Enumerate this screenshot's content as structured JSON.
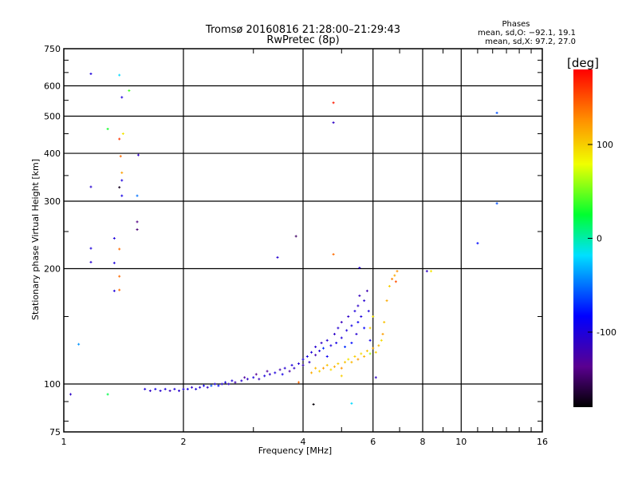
{
  "chart_data": {
    "type": "scatter",
    "title": [
      "Tromsø 20160816 21:28:00–21:29:43",
      "RwPretec (8p)"
    ],
    "stats": {
      "heading": "Phases",
      "line_o": "mean, sd,O: −92.1, 19.1",
      "line_x": "mean, sd,X:  97.2, 27.0"
    },
    "xlabel": "Frequency [MHz]",
    "ylabel": "Stationary phase Virtual Height [km]",
    "xscale": "log",
    "yscale": "log",
    "xlim": [
      1,
      16
    ],
    "ylim": [
      75,
      750
    ],
    "xticks": [
      1,
      2,
      4,
      6,
      8,
      10,
      16
    ],
    "xtick_labels": [
      "1",
      "2",
      "4",
      "6",
      "8",
      "10",
      "16"
    ],
    "yticks": [
      75,
      100,
      200,
      300,
      400,
      500,
      600,
      750
    ],
    "ytick_labels": [
      "75",
      "100",
      "200",
      "300",
      "400",
      "500",
      "600",
      "750"
    ],
    "grid": true,
    "colorbar": {
      "label": "[deg]",
      "range": [
        -180,
        180
      ],
      "ticks": [
        100,
        0,
        -100
      ],
      "tick_labels": [
        "100",
        "0",
        "-100"
      ]
    },
    "point_format": [
      "frequency_MHz",
      "height_km",
      "phase_deg"
    ],
    "points": [
      [
        1.6,
        97,
        -100
      ],
      [
        1.65,
        96,
        -110
      ],
      [
        1.7,
        97,
        -95
      ],
      [
        1.75,
        96,
        -105
      ],
      [
        1.8,
        97,
        -100
      ],
      [
        1.85,
        96,
        -115
      ],
      [
        1.9,
        97,
        -100
      ],
      [
        1.95,
        96,
        -108
      ],
      [
        2.0,
        97,
        -102
      ],
      [
        2.05,
        97,
        -95
      ],
      [
        2.1,
        98,
        -110
      ],
      [
        2.15,
        97,
        -100
      ],
      [
        2.2,
        98,
        -105
      ],
      [
        2.25,
        99,
        -95
      ],
      [
        2.3,
        98,
        -110
      ],
      [
        2.35,
        99,
        -60
      ],
      [
        2.4,
        100,
        -100
      ],
      [
        2.45,
        99,
        -80
      ],
      [
        2.5,
        100,
        -105
      ],
      [
        2.55,
        101,
        -95
      ],
      [
        2.6,
        100,
        -110
      ],
      [
        2.65,
        102,
        -100
      ],
      [
        2.7,
        101,
        -120
      ],
      [
        2.8,
        102,
        -105
      ],
      [
        2.85,
        104,
        -130
      ],
      [
        2.9,
        103,
        -110
      ],
      [
        3.0,
        104,
        -100
      ],
      [
        3.05,
        106,
        -135
      ],
      [
        3.1,
        103,
        -115
      ],
      [
        3.2,
        105,
        -100
      ],
      [
        3.25,
        108,
        -130
      ],
      [
        3.3,
        106,
        -110
      ],
      [
        3.4,
        107,
        -100
      ],
      [
        3.5,
        109,
        -120
      ],
      [
        3.55,
        106,
        -95
      ],
      [
        3.6,
        110,
        -105
      ],
      [
        3.7,
        108,
        -125
      ],
      [
        3.75,
        112,
        -100
      ],
      [
        3.8,
        110,
        -110
      ],
      [
        3.9,
        113,
        -105
      ],
      [
        4.0,
        112,
        -115
      ],
      [
        4.0,
        116,
        -100
      ],
      [
        4.1,
        118,
        -95
      ],
      [
        4.15,
        114,
        -110
      ],
      [
        4.2,
        121,
        -100
      ],
      [
        4.3,
        119,
        -120
      ],
      [
        4.3,
        125,
        -105
      ],
      [
        4.4,
        122,
        -100
      ],
      [
        4.45,
        128,
        -110
      ],
      [
        4.5,
        124,
        -70
      ],
      [
        4.6,
        130,
        -105
      ],
      [
        4.6,
        118,
        -90
      ],
      [
        4.7,
        126,
        -100
      ],
      [
        4.8,
        135,
        -110
      ],
      [
        4.85,
        128,
        -95
      ],
      [
        4.9,
        140,
        -105
      ],
      [
        5.0,
        132,
        -100
      ],
      [
        5.0,
        145,
        -115
      ],
      [
        5.1,
        125,
        -70
      ],
      [
        5.15,
        138,
        -100
      ],
      [
        5.2,
        150,
        -110
      ],
      [
        5.3,
        142,
        -95
      ],
      [
        5.3,
        128,
        -80
      ],
      [
        5.4,
        155,
        -100
      ],
      [
        5.45,
        135,
        -105
      ],
      [
        5.5,
        160,
        -110
      ],
      [
        5.5,
        145,
        -90
      ],
      [
        5.55,
        170,
        -115
      ],
      [
        5.6,
        150,
        -100
      ],
      [
        5.7,
        165,
        -105
      ],
      [
        5.7,
        140,
        -85
      ],
      [
        5.8,
        175,
        -120
      ],
      [
        5.85,
        155,
        -100
      ],
      [
        5.9,
        130,
        -95
      ],
      [
        4.3,
        110,
        110
      ],
      [
        4.4,
        108,
        100
      ],
      [
        4.5,
        110,
        120
      ],
      [
        4.6,
        112,
        105
      ],
      [
        4.7,
        109,
        95
      ],
      [
        4.8,
        111,
        115
      ],
      [
        4.9,
        113,
        100
      ],
      [
        5.0,
        110,
        125
      ],
      [
        5.1,
        114,
        105
      ],
      [
        5.2,
        116,
        90
      ],
      [
        5.3,
        114,
        110
      ],
      [
        5.4,
        118,
        100
      ],
      [
        5.5,
        116,
        120
      ],
      [
        5.6,
        120,
        95
      ],
      [
        5.7,
        118,
        110
      ],
      [
        5.8,
        122,
        105
      ],
      [
        5.9,
        120,
        60
      ],
      [
        6.0,
        124,
        115
      ],
      [
        6.1,
        121,
        100
      ],
      [
        6.2,
        126,
        110
      ],
      [
        6.3,
        130,
        95
      ],
      [
        6.35,
        135,
        120
      ],
      [
        6.4,
        145,
        105
      ],
      [
        6.5,
        165,
        115
      ],
      [
        6.6,
        180,
        100
      ],
      [
        6.7,
        188,
        130
      ],
      [
        6.8,
        192,
        115
      ],
      [
        6.9,
        197,
        125
      ],
      [
        6.85,
        185,
        150
      ],
      [
        6.0,
        150,
        90
      ],
      [
        5.9,
        140,
        100
      ],
      [
        5.0,
        105,
        100
      ],
      [
        3.9,
        101,
        140
      ],
      [
        4.2,
        107,
        115
      ],
      [
        1.04,
        94,
        -110
      ],
      [
        1.17,
        645,
        -100
      ],
      [
        1.38,
        640,
        -20
      ],
      [
        1.46,
        583,
        40
      ],
      [
        1.4,
        560,
        -100
      ],
      [
        1.29,
        463,
        30
      ],
      [
        1.41,
        450,
        90
      ],
      [
        1.38,
        436,
        160
      ],
      [
        1.39,
        393,
        140
      ],
      [
        1.54,
        396,
        -110
      ],
      [
        1.4,
        356,
        120
      ],
      [
        1.4,
        340,
        -100
      ],
      [
        1.38,
        326,
        -170
      ],
      [
        1.17,
        327,
        -105
      ],
      [
        1.4,
        310,
        -95
      ],
      [
        1.53,
        310,
        -50
      ],
      [
        1.53,
        265,
        -140
      ],
      [
        1.53,
        253,
        -145
      ],
      [
        1.17,
        226,
        -100
      ],
      [
        1.17,
        208,
        -105
      ],
      [
        1.34,
        240,
        -100
      ],
      [
        1.38,
        225,
        140
      ],
      [
        1.34,
        207,
        -100
      ],
      [
        1.38,
        191,
        140
      ],
      [
        1.34,
        175,
        -100
      ],
      [
        1.38,
        176,
        140
      ],
      [
        1.09,
        127,
        -40
      ],
      [
        1.29,
        94,
        20
      ],
      [
        4.77,
        542,
        170
      ],
      [
        4.77,
        481,
        -110
      ],
      [
        3.84,
        243,
        -150
      ],
      [
        3.45,
        214,
        -105
      ],
      [
        4.77,
        218,
        140
      ],
      [
        5.55,
        201,
        -105
      ],
      [
        4.25,
        88.5,
        -178
      ],
      [
        5.3,
        89,
        -20
      ],
      [
        6.1,
        104,
        -110
      ],
      [
        8.2,
        197,
        -110
      ],
      [
        8.4,
        197,
        90
      ],
      [
        11.0,
        233,
        -80
      ],
      [
        12.3,
        296,
        -60
      ],
      [
        12.3,
        510,
        -60
      ]
    ]
  }
}
